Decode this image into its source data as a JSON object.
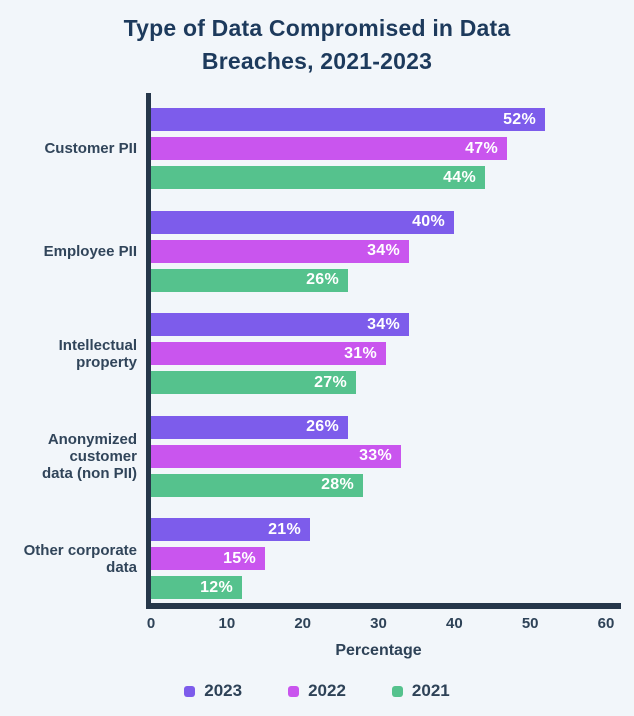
{
  "title": "Type of Data Compromised in Data Breaches, 2021-2023",
  "chart_data": {
    "type": "bar",
    "orientation": "horizontal",
    "categories": [
      "Customer PII",
      "Employee PII",
      "Intellectual\nproperty",
      "Anonymized\ncustomer\ndata (non PII)",
      "Other corporate\ndata"
    ],
    "series": [
      {
        "name": "2023",
        "color": "#7d5ceb",
        "values": [
          52,
          40,
          34,
          26,
          21
        ]
      },
      {
        "name": "2022",
        "color": "#c955ee",
        "values": [
          47,
          34,
          31,
          33,
          15
        ]
      },
      {
        "name": "2021",
        "color": "#55c28d",
        "values": [
          44,
          26,
          27,
          28,
          12
        ]
      }
    ],
    "value_suffix": "%",
    "xlabel": "Percentage",
    "xticks": [
      0,
      10,
      20,
      30,
      40,
      50,
      60
    ],
    "xlim": [
      0,
      60
    ],
    "legend_position": "bottom",
    "grid": false
  },
  "colors": {
    "background": "#f2f6fa",
    "title_text": "#1d3a5c",
    "label_text": "#31455a",
    "axis_line": "#26374a",
    "bar_label_text": "#ffffff"
  }
}
